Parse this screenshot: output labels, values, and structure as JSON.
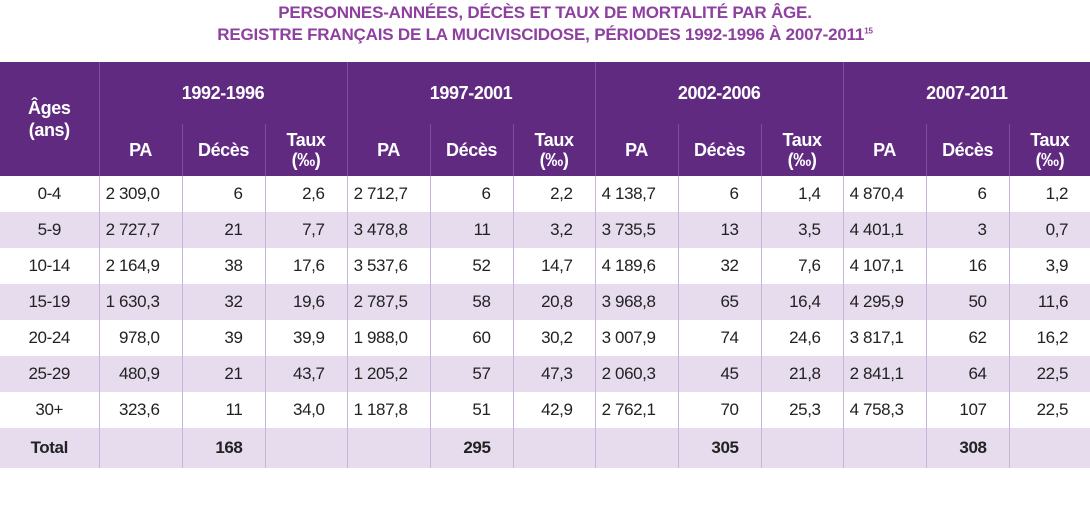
{
  "title": {
    "line1": "PERSONNES-ANNÉES, DÉCÈS ET TAUX DE MORTALITÉ PAR ÂGE.",
    "line2": "REGISTRE FRANÇAIS DE LA MUCIVISCIDOSE, PÉRIODES 1992-1996 À 2007-2011",
    "ref": "15"
  },
  "header": {
    "ages_line1": "Âges",
    "ages_line2": "(ans)",
    "periods": [
      "1992-1996",
      "1997-2001",
      "2002-2006",
      "2007-2011"
    ],
    "col_pa": "PA",
    "col_deces": "Décès",
    "col_taux_line1": "Taux",
    "col_taux_line2": "(‰)"
  },
  "rows": [
    {
      "age": "0-4",
      "cells": [
        "2 309,0",
        "6",
        "2,6",
        "2 712,7",
        "6",
        "2,2",
        "4 138,7",
        "6",
        "1,4",
        "4 870,4",
        "6",
        "1,2"
      ]
    },
    {
      "age": "5-9",
      "cells": [
        "2 727,7",
        "21",
        "7,7",
        "3 478,8",
        "11",
        "3,2",
        "3 735,5",
        "13",
        "3,5",
        "4 401,1",
        "3",
        "0,7"
      ]
    },
    {
      "age": "10-14",
      "cells": [
        "2 164,9",
        "38",
        "17,6",
        "3 537,6",
        "52",
        "14,7",
        "4 189,6",
        "32",
        "7,6",
        "4 107,1",
        "16",
        "3,9"
      ]
    },
    {
      "age": "15-19",
      "cells": [
        "1 630,3",
        "32",
        "19,6",
        "2 787,5",
        "58",
        "20,8",
        "3 968,8",
        "65",
        "16,4",
        "4 295,9",
        "50",
        "11,6"
      ]
    },
    {
      "age": "20-24",
      "cells": [
        "978,0",
        "39",
        "39,9",
        "1 988,0",
        "60",
        "30,2",
        "3 007,9",
        "74",
        "24,6",
        "3 817,1",
        "62",
        "16,2"
      ]
    },
    {
      "age": "25-29",
      "cells": [
        "480,9",
        "21",
        "43,7",
        "1 205,2",
        "57",
        "47,3",
        "2 060,3",
        "45",
        "21,8",
        "2 841,1",
        "64",
        "22,5"
      ]
    },
    {
      "age": "30+",
      "cells": [
        "323,6",
        "11",
        "34,0",
        "1 187,8",
        "51",
        "42,9",
        "2 762,1",
        "70",
        "25,3",
        "4 758,3",
        "107",
        "22,5"
      ]
    }
  ],
  "total": {
    "label": "Total",
    "deces": [
      "168",
      "295",
      "305",
      "308"
    ]
  }
}
